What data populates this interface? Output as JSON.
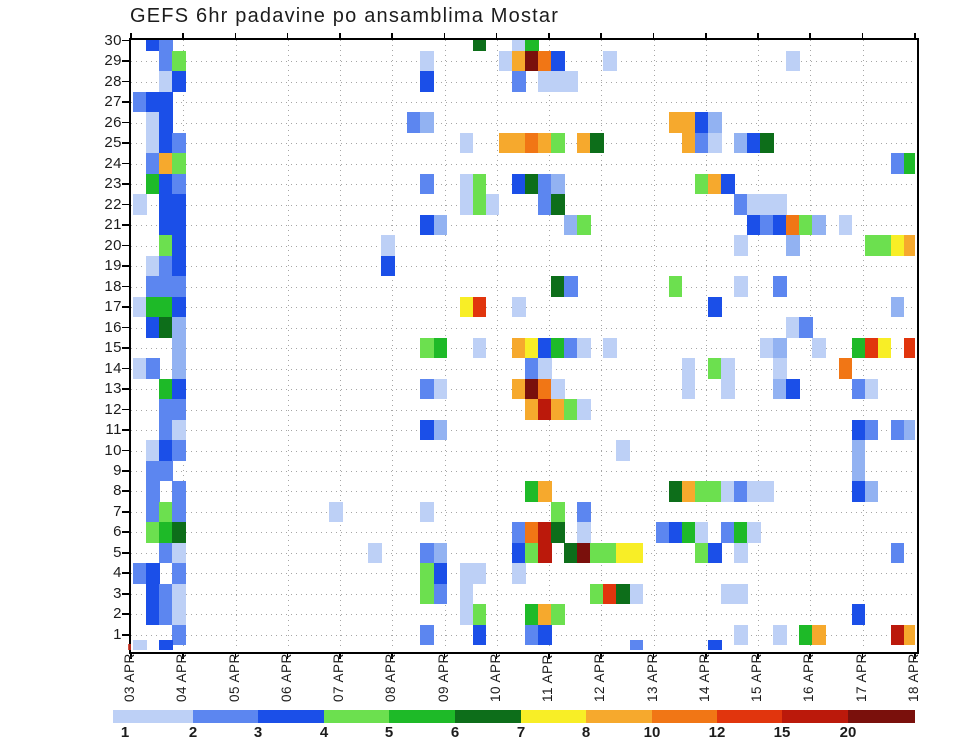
{
  "title": "GEFS 6hr padavine po ansamblima Mostar",
  "axes": {
    "y_label_meaning": "ensemble member",
    "y_labels": [
      "30",
      "29",
      "28",
      "27",
      "26",
      "25",
      "24",
      "23",
      "22",
      "21",
      "20",
      "19",
      "18",
      "17",
      "16",
      "15",
      "14",
      "13",
      "12",
      "11",
      "10",
      "9",
      "8",
      "7",
      "6",
      "5",
      "4",
      "3",
      "2",
      "1"
    ],
    "x_label_meaning": "date, 6-hour steps",
    "x_labels": [
      "03 APR",
      "04 APR",
      "05 APR",
      "06 APR",
      "07 APR",
      "08 APR",
      "09 APR",
      "10 APR",
      "11 APR",
      "12 APR",
      "13 APR",
      "14 APR",
      "15 APR",
      "16 APR",
      "17 APR",
      "18 APR"
    ]
  },
  "colorbar": {
    "labels": [
      "1",
      "2",
      "3",
      "4",
      "5",
      "6",
      "7",
      "8",
      "10",
      "12",
      "15",
      "20"
    ],
    "segment_levels": [
      1,
      3,
      4,
      5,
      6,
      7,
      8,
      9,
      10,
      11,
      12,
      13
    ]
  },
  "levels": {
    "1": {
      "range": "0-1",
      "color": "#bdd0f6"
    },
    "2": {
      "range": "1-2",
      "color": "#92b2f2"
    },
    "3": {
      "range": "2-3",
      "color": "#5c86f0"
    },
    "4": {
      "range": "3-4",
      "color": "#1b4fe8"
    },
    "5": {
      "range": "4-5",
      "color": "#6ce04f"
    },
    "6": {
      "range": "5-6",
      "color": "#1eba28"
    },
    "7": {
      "range": "6-7",
      "color": "#0d6e1a"
    },
    "8": {
      "range": "7-8",
      "color": "#f8ee26"
    },
    "9": {
      "range": "8-10",
      "color": "#f6a92d"
    },
    "10": {
      "range": "10-12",
      "color": "#f17615"
    },
    "11": {
      "range": "12-15",
      "color": "#e1350d"
    },
    "12": {
      "range": "15-20",
      "color": "#bb190b"
    },
    "13": {
      "range": "20+",
      "color": "#7a100c"
    }
  },
  "chart_data": {
    "type": "heatmap",
    "title": "GEFS 6hr padavine po ansamblima Mostar",
    "x": "time, 6h steps, col 0 = 03 APR 00h, 60 columns through 18 APR",
    "y": "ensemble member 1-30 (row 0 = clipped edge fragments below member 1)",
    "value_units": "mm / 6hr, binned to colorbar levels",
    "legend_position": "bottom",
    "grid": "dotted, daily x / per-member y",
    "cells": [
      [
        30,
        1,
        4
      ],
      [
        30,
        2,
        3
      ],
      [
        30,
        26,
        7
      ],
      [
        30,
        29,
        1
      ],
      [
        30,
        30,
        6
      ],
      [
        29,
        2,
        3
      ],
      [
        29,
        3,
        5
      ],
      [
        29,
        22,
        1
      ],
      [
        29,
        28,
        1
      ],
      [
        29,
        29,
        9
      ],
      [
        29,
        30,
        13
      ],
      [
        29,
        31,
        10
      ],
      [
        29,
        32,
        4
      ],
      [
        29,
        36,
        1
      ],
      [
        29,
        50,
        1
      ],
      [
        28,
        2,
        1
      ],
      [
        28,
        3,
        4
      ],
      [
        28,
        22,
        4
      ],
      [
        28,
        29,
        3
      ],
      [
        28,
        31,
        1
      ],
      [
        28,
        32,
        1
      ],
      [
        28,
        33,
        1
      ],
      [
        27,
        0,
        3
      ],
      [
        27,
        1,
        4
      ],
      [
        27,
        2,
        4
      ],
      [
        26,
        1,
        1
      ],
      [
        26,
        2,
        4
      ],
      [
        26,
        21,
        3
      ],
      [
        26,
        22,
        2
      ],
      [
        26,
        41,
        9
      ],
      [
        26,
        42,
        9
      ],
      [
        26,
        43,
        4
      ],
      [
        26,
        44,
        2
      ],
      [
        25,
        1,
        1
      ],
      [
        25,
        2,
        4
      ],
      [
        25,
        3,
        3
      ],
      [
        25,
        25,
        1
      ],
      [
        25,
        28,
        9
      ],
      [
        25,
        29,
        9
      ],
      [
        25,
        30,
        10
      ],
      [
        25,
        31,
        9
      ],
      [
        25,
        32,
        5
      ],
      [
        25,
        34,
        9
      ],
      [
        25,
        35,
        7
      ],
      [
        25,
        42,
        9
      ],
      [
        25,
        43,
        3
      ],
      [
        25,
        44,
        1
      ],
      [
        25,
        46,
        2
      ],
      [
        25,
        47,
        4
      ],
      [
        25,
        48,
        7
      ],
      [
        24,
        1,
        3
      ],
      [
        24,
        2,
        9
      ],
      [
        24,
        3,
        5
      ],
      [
        24,
        58,
        3
      ],
      [
        24,
        59,
        6
      ],
      [
        23,
        1,
        6
      ],
      [
        23,
        2,
        4
      ],
      [
        23,
        3,
        3
      ],
      [
        23,
        22,
        3
      ],
      [
        23,
        25,
        1
      ],
      [
        23,
        26,
        5
      ],
      [
        23,
        29,
        4
      ],
      [
        23,
        30,
        7
      ],
      [
        23,
        31,
        3
      ],
      [
        23,
        32,
        2
      ],
      [
        23,
        43,
        5
      ],
      [
        23,
        44,
        9
      ],
      [
        23,
        45,
        4
      ],
      [
        22,
        0,
        1
      ],
      [
        22,
        2,
        4
      ],
      [
        22,
        3,
        4
      ],
      [
        22,
        25,
        1
      ],
      [
        22,
        26,
        5
      ],
      [
        22,
        27,
        1
      ],
      [
        22,
        31,
        3
      ],
      [
        22,
        32,
        7
      ],
      [
        22,
        46,
        3
      ],
      [
        22,
        47,
        1
      ],
      [
        22,
        48,
        1
      ],
      [
        22,
        49,
        1
      ],
      [
        21,
        2,
        4
      ],
      [
        21,
        3,
        4
      ],
      [
        21,
        22,
        4
      ],
      [
        21,
        23,
        2
      ],
      [
        21,
        33,
        2
      ],
      [
        21,
        34,
        5
      ],
      [
        21,
        47,
        4
      ],
      [
        21,
        48,
        3
      ],
      [
        21,
        49,
        4
      ],
      [
        21,
        50,
        10
      ],
      [
        21,
        51,
        5
      ],
      [
        21,
        52,
        2
      ],
      [
        21,
        54,
        1
      ],
      [
        20,
        2,
        5
      ],
      [
        20,
        3,
        4
      ],
      [
        20,
        19,
        1
      ],
      [
        20,
        46,
        1
      ],
      [
        20,
        50,
        2
      ],
      [
        20,
        56,
        5
      ],
      [
        20,
        57,
        5
      ],
      [
        20,
        58,
        8
      ],
      [
        20,
        59,
        9
      ],
      [
        19,
        1,
        1
      ],
      [
        19,
        2,
        3
      ],
      [
        19,
        3,
        4
      ],
      [
        19,
        19,
        4
      ],
      [
        18,
        1,
        3
      ],
      [
        18,
        2,
        3
      ],
      [
        18,
        3,
        3
      ],
      [
        18,
        32,
        7
      ],
      [
        18,
        33,
        3
      ],
      [
        18,
        41,
        5
      ],
      [
        18,
        46,
        1
      ],
      [
        18,
        49,
        3
      ],
      [
        17,
        0,
        1
      ],
      [
        17,
        1,
        6
      ],
      [
        17,
        2,
        6
      ],
      [
        17,
        3,
        4
      ],
      [
        17,
        25,
        8
      ],
      [
        17,
        26,
        11
      ],
      [
        17,
        29,
        1
      ],
      [
        17,
        44,
        4
      ],
      [
        17,
        58,
        2
      ],
      [
        16,
        1,
        4
      ],
      [
        16,
        2,
        7
      ],
      [
        16,
        3,
        2
      ],
      [
        16,
        50,
        1
      ],
      [
        16,
        51,
        3
      ],
      [
        15,
        3,
        2
      ],
      [
        15,
        22,
        5
      ],
      [
        15,
        23,
        6
      ],
      [
        15,
        26,
        1
      ],
      [
        15,
        29,
        9
      ],
      [
        15,
        30,
        8
      ],
      [
        15,
        31,
        4
      ],
      [
        15,
        32,
        6
      ],
      [
        15,
        33,
        3
      ],
      [
        15,
        34,
        1
      ],
      [
        15,
        36,
        1
      ],
      [
        15,
        48,
        1
      ],
      [
        15,
        49,
        2
      ],
      [
        15,
        52,
        1
      ],
      [
        15,
        55,
        6
      ],
      [
        15,
        56,
        11
      ],
      [
        15,
        57,
        8
      ],
      [
        15,
        59,
        11
      ],
      [
        14,
        0,
        1
      ],
      [
        14,
        1,
        3
      ],
      [
        14,
        3,
        2
      ],
      [
        14,
        30,
        3
      ],
      [
        14,
        31,
        1
      ],
      [
        14,
        42,
        1
      ],
      [
        14,
        44,
        5
      ],
      [
        14,
        45,
        1
      ],
      [
        14,
        49,
        1
      ],
      [
        14,
        54,
        10
      ],
      [
        13,
        2,
        6
      ],
      [
        13,
        3,
        4
      ],
      [
        13,
        22,
        3
      ],
      [
        13,
        23,
        1
      ],
      [
        13,
        29,
        9
      ],
      [
        13,
        30,
        13
      ],
      [
        13,
        31,
        10
      ],
      [
        13,
        32,
        1
      ],
      [
        13,
        42,
        1
      ],
      [
        13,
        45,
        1
      ],
      [
        13,
        49,
        2
      ],
      [
        13,
        50,
        4
      ],
      [
        13,
        55,
        3
      ],
      [
        13,
        56,
        1
      ],
      [
        12,
        2,
        3
      ],
      [
        12,
        3,
        3
      ],
      [
        12,
        30,
        9
      ],
      [
        12,
        31,
        12
      ],
      [
        12,
        32,
        9
      ],
      [
        12,
        33,
        5
      ],
      [
        12,
        34,
        1
      ],
      [
        11,
        2,
        3
      ],
      [
        11,
        3,
        1
      ],
      [
        11,
        22,
        4
      ],
      [
        11,
        23,
        2
      ],
      [
        11,
        55,
        4
      ],
      [
        11,
        56,
        3
      ],
      [
        11,
        58,
        3
      ],
      [
        11,
        59,
        2
      ],
      [
        10,
        1,
        1
      ],
      [
        10,
        2,
        4
      ],
      [
        10,
        3,
        3
      ],
      [
        10,
        37,
        1
      ],
      [
        10,
        55,
        2
      ],
      [
        9,
        1,
        3
      ],
      [
        9,
        2,
        3
      ],
      [
        9,
        55,
        2
      ],
      [
        8,
        1,
        3
      ],
      [
        8,
        3,
        3
      ],
      [
        8,
        30,
        6
      ],
      [
        8,
        31,
        9
      ],
      [
        8,
        41,
        7
      ],
      [
        8,
        42,
        9
      ],
      [
        8,
        43,
        5
      ],
      [
        8,
        44,
        5
      ],
      [
        8,
        45,
        1
      ],
      [
        8,
        46,
        3
      ],
      [
        8,
        47,
        1
      ],
      [
        8,
        48,
        1
      ],
      [
        8,
        55,
        4
      ],
      [
        8,
        56,
        2
      ],
      [
        7,
        1,
        3
      ],
      [
        7,
        2,
        5
      ],
      [
        7,
        3,
        3
      ],
      [
        7,
        15,
        1
      ],
      [
        7,
        22,
        1
      ],
      [
        7,
        32,
        5
      ],
      [
        7,
        34,
        3
      ],
      [
        6,
        1,
        5
      ],
      [
        6,
        2,
        6
      ],
      [
        6,
        3,
        7
      ],
      [
        6,
        29,
        3
      ],
      [
        6,
        30,
        10
      ],
      [
        6,
        31,
        12
      ],
      [
        6,
        32,
        7
      ],
      [
        6,
        34,
        1
      ],
      [
        6,
        40,
        3
      ],
      [
        6,
        41,
        4
      ],
      [
        6,
        42,
        6
      ],
      [
        6,
        43,
        1
      ],
      [
        6,
        45,
        3
      ],
      [
        6,
        46,
        6
      ],
      [
        6,
        47,
        1
      ],
      [
        5,
        2,
        3
      ],
      [
        5,
        3,
        1
      ],
      [
        5,
        18,
        1
      ],
      [
        5,
        22,
        3
      ],
      [
        5,
        23,
        2
      ],
      [
        5,
        29,
        4
      ],
      [
        5,
        30,
        5
      ],
      [
        5,
        31,
        12
      ],
      [
        5,
        33,
        7
      ],
      [
        5,
        34,
        13
      ],
      [
        5,
        35,
        5
      ],
      [
        5,
        36,
        5
      ],
      [
        5,
        37,
        8
      ],
      [
        5,
        38,
        8
      ],
      [
        5,
        43,
        5
      ],
      [
        5,
        44,
        4
      ],
      [
        5,
        46,
        1
      ],
      [
        5,
        58,
        3
      ],
      [
        4,
        0,
        3
      ],
      [
        4,
        1,
        4
      ],
      [
        4,
        3,
        3
      ],
      [
        4,
        22,
        5
      ],
      [
        4,
        23,
        4
      ],
      [
        4,
        25,
        1
      ],
      [
        4,
        26,
        1
      ],
      [
        4,
        29,
        1
      ],
      [
        3,
        1,
        4
      ],
      [
        3,
        2,
        3
      ],
      [
        3,
        3,
        1
      ],
      [
        3,
        22,
        5
      ],
      [
        3,
        23,
        3
      ],
      [
        3,
        25,
        1
      ],
      [
        3,
        35,
        5
      ],
      [
        3,
        36,
        11
      ],
      [
        3,
        37,
        7
      ],
      [
        3,
        38,
        1
      ],
      [
        3,
        45,
        1
      ],
      [
        3,
        46,
        1
      ],
      [
        2,
        1,
        4
      ],
      [
        2,
        2,
        3
      ],
      [
        2,
        3,
        1
      ],
      [
        2,
        25,
        1
      ],
      [
        2,
        26,
        5
      ],
      [
        2,
        30,
        6
      ],
      [
        2,
        31,
        9
      ],
      [
        2,
        32,
        5
      ],
      [
        2,
        55,
        4
      ],
      [
        1,
        3,
        3
      ],
      [
        1,
        22,
        3
      ],
      [
        1,
        26,
        4
      ],
      [
        1,
        30,
        3
      ],
      [
        1,
        31,
        4
      ],
      [
        1,
        46,
        1
      ],
      [
        1,
        49,
        1
      ],
      [
        1,
        51,
        6
      ],
      [
        1,
        52,
        9
      ],
      [
        1,
        58,
        12
      ],
      [
        1,
        59,
        9
      ],
      [
        0,
        0,
        1
      ],
      [
        0,
        2,
        4
      ],
      [
        0,
        38,
        3
      ],
      [
        0,
        44,
        4
      ]
    ]
  }
}
